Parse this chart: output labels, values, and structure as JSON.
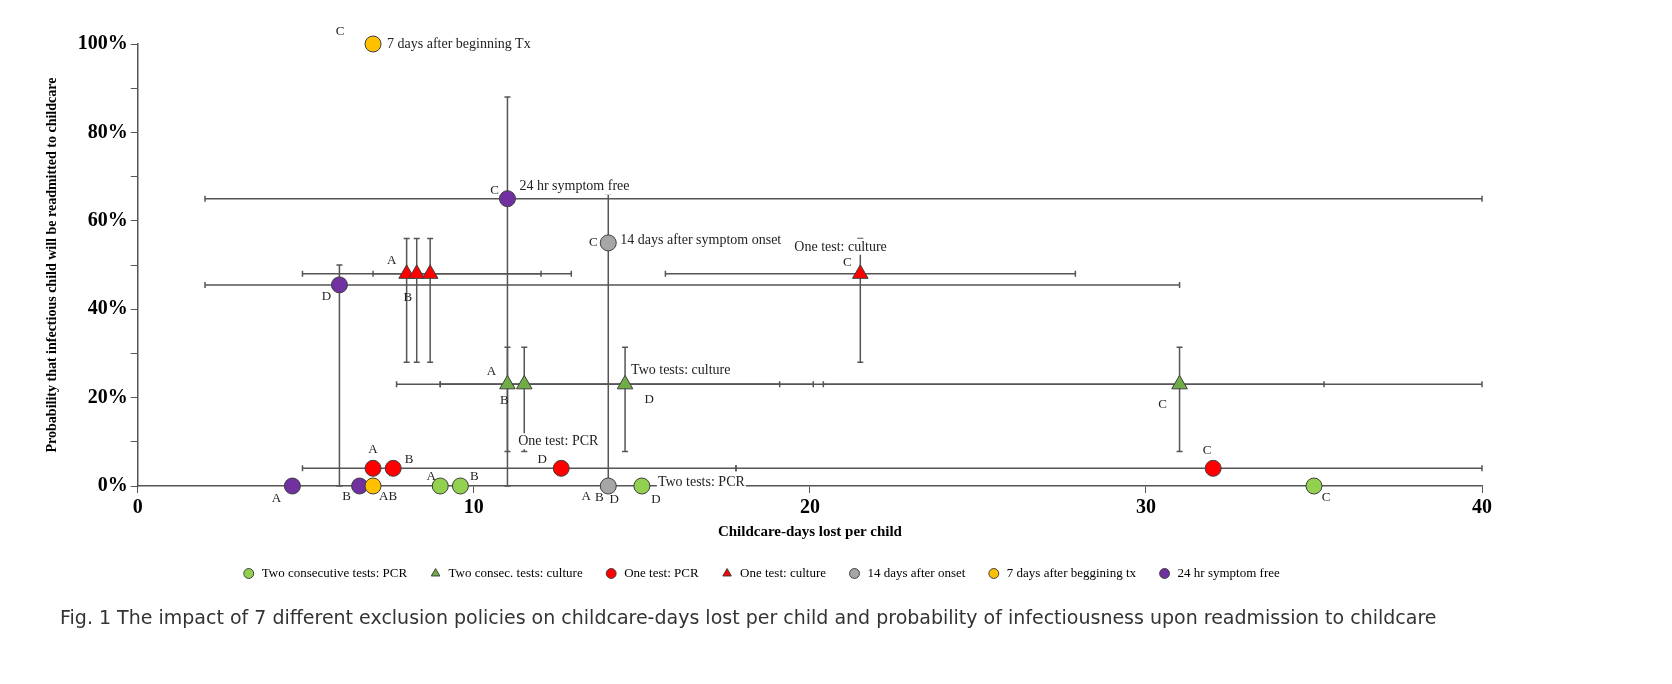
{
  "chart_data": {
    "type": "scatter",
    "xlabel": "Childcare-days lost per child",
    "ylabel": "Probability that infectious child will be readmitted to childcare",
    "xlim": [
      0,
      40
    ],
    "xticks": [
      0,
      10,
      20,
      30,
      40
    ],
    "ylim": [
      0,
      100
    ],
    "yticks": [
      {
        "value": 0,
        "label": "0%"
      },
      {
        "value": 10,
        "label": null
      },
      {
        "value": 20,
        "label": "20%"
      },
      {
        "value": 30,
        "label": null
      },
      {
        "value": 40,
        "label": "40%"
      },
      {
        "value": 50,
        "label": null
      },
      {
        "value": 60,
        "label": "60%"
      },
      {
        "value": 70,
        "label": null
      },
      {
        "value": 80,
        "label": "80%"
      },
      {
        "value": 90,
        "label": null
      },
      {
        "value": 100,
        "label": "100%"
      }
    ],
    "grid": false,
    "legend": "bottom",
    "marker": "circle",
    "series": [
      {
        "name": "Two consecutive tests: PCR",
        "color": "#92d050",
        "x": [
          9.0,
          9.6,
          15.0,
          35.0
        ],
        "values": [
          0,
          0,
          0,
          0
        ]
      },
      {
        "name": "Two consec. tests: culture",
        "color": "#70ad47",
        "marker": "triangle",
        "x": [
          11.0,
          11.5,
          14.5,
          31.0
        ],
        "values": [
          23,
          23,
          23,
          23
        ],
        "errors": [
          [
            7.8,
            31.4
          ],
          [
            7.8,
            31.4
          ],
          [
            7.8,
            31.4
          ],
          [
            7.8,
            31.4
          ]
        ],
        "xerrors": [
          [
            7.7,
            19.1
          ],
          [
            9.0,
            20.1
          ],
          [
            9.0,
            35.3
          ],
          [
            20.4,
            40
          ]
        ]
      },
      {
        "name": "One test: PCR",
        "color": "#ff0000",
        "x": [
          7.0,
          7.6,
          12.6,
          32.0
        ],
        "values": [
          4,
          4,
          4,
          4
        ],
        "xerrors": [
          [
            4.9,
            17.8
          ],
          null,
          null,
          [
            17.8,
            40
          ]
        ]
      },
      {
        "name": "One test: culture",
        "color": "#ff0000",
        "marker": "triangle",
        "x": [
          8.0,
          8.3,
          8.7,
          21.5
        ],
        "values": [
          48,
          48,
          48,
          48
        ],
        "errors": [
          [
            28,
            56
          ],
          [
            28,
            56
          ],
          [
            28,
            56
          ],
          [
            28,
            56
          ]
        ],
        "xerrors": [
          [
            4.9,
            12.0
          ],
          [
            7.0,
            12.9
          ],
          null,
          [
            15.7,
            27.9
          ]
        ]
      },
      {
        "name": "14 days after onset",
        "color": "#a6a6a6",
        "x": [
          14.0,
          14.0
        ],
        "values": [
          0,
          55
        ],
        "errors": [
          [
            0,
            66
          ],
          null
        ]
      },
      {
        "name": "7 days after beggining tx",
        "color": "#ffc000",
        "x": [
          7.0,
          7.0
        ],
        "values": [
          0,
          100
        ]
      },
      {
        "name": "24 hr symptom free",
        "color": "#7030a0",
        "x": [
          4.6,
          6.6,
          6.0,
          11.0
        ],
        "values": [
          0,
          0,
          45.5,
          65
        ],
        "errors": [
          null,
          null,
          [
            0,
            50
          ],
          [
            0,
            88
          ]
        ],
        "xerrors": [
          null,
          null,
          [
            2.0,
            31.0
          ],
          [
            2.0,
            40
          ]
        ]
      }
    ],
    "annotations": [
      {
        "text": "7 days after beginning Tx",
        "x": 7.0,
        "y": 100
      },
      {
        "text": "24 hr symptom free",
        "x": 11.0,
        "y": 65
      },
      {
        "text": "14 days after symptom onset",
        "x": 14.0,
        "y": 55
      },
      {
        "text": "One test: culture",
        "x": 21.5,
        "y": 48
      },
      {
        "text": "Two tests: culture",
        "x": 14.5,
        "y": 23
      },
      {
        "text": "One test: PCR",
        "x": 12.6,
        "y": 4
      },
      {
        "text": "Two tests: PCR",
        "x": 15.0,
        "y": 0
      },
      {
        "text": "C",
        "x": 7.0,
        "y": 100
      },
      {
        "text": "C",
        "x": 11.0,
        "y": 65
      },
      {
        "text": "C",
        "x": 14.0,
        "y": 55
      },
      {
        "text": "A",
        "x": 8.0,
        "y": 48
      },
      {
        "text": "B",
        "x": 8.3,
        "y": 48
      },
      {
        "text": "D",
        "x": 6.0,
        "y": 45.5
      },
      {
        "text": "C",
        "x": 21.5,
        "y": 48
      },
      {
        "text": "A",
        "x": 11.0,
        "y": 23
      },
      {
        "text": "B",
        "x": 11.5,
        "y": 23
      },
      {
        "text": "D",
        "x": 14.5,
        "y": 23
      },
      {
        "text": "C",
        "x": 31.0,
        "y": 23
      },
      {
        "text": "A",
        "x": 7.0,
        "y": 4
      },
      {
        "text": "B",
        "x": 7.6,
        "y": 4
      },
      {
        "text": "D",
        "x": 12.6,
        "y": 4
      },
      {
        "text": "C",
        "x": 32.0,
        "y": 4
      },
      {
        "text": "A",
        "x": 9.0,
        "y": 0
      },
      {
        "text": "B",
        "x": 9.6,
        "y": 0
      },
      {
        "text": "A",
        "x": 4.6,
        "y": 0
      },
      {
        "text": "B",
        "x": 6.6,
        "y": 0
      },
      {
        "text": "AB",
        "x": 7.0,
        "y": 0
      },
      {
        "text": "A",
        "x": 14.0,
        "y": 0
      },
      {
        "text": "B",
        "x": 14.0,
        "y": 0
      },
      {
        "text": "D",
        "x": 14.0,
        "y": 0
      },
      {
        "text": "D",
        "x": 15.0,
        "y": 0
      },
      {
        "text": "C",
        "x": 35.0,
        "y": 0
      },
      "Fig. 1 The impact of 7 different exclusion policies on childcare-days lost per child and probability of infectiousness upon readmission to childcare"
    ]
  }
}
